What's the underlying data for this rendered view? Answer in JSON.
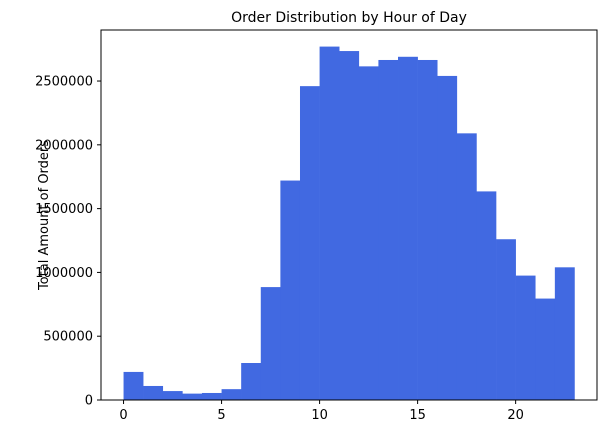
{
  "chart_data": {
    "type": "bar",
    "title": "Order Distribution by Hour of Day",
    "xlabel": "",
    "ylabel": "Total Amount of Orders",
    "bar_color": "#4169e1",
    "bins": 23,
    "xlim": [
      -1.15,
      24.15
    ],
    "ylim": [
      0,
      2900000
    ],
    "x_ticks": [
      0,
      5,
      10,
      15,
      20
    ],
    "y_ticks": [
      0,
      500000,
      1000000,
      1500000,
      2000000,
      2500000
    ],
    "x_tick_labels": [
      "0",
      "5",
      "10",
      "15",
      "20"
    ],
    "y_tick_labels": [
      "0",
      "500000",
      "1000000",
      "1500000",
      "2000000",
      "2500000"
    ],
    "bin_edges": [
      0,
      1,
      2,
      3,
      4,
      5,
      6,
      7,
      8,
      9,
      10,
      11,
      12,
      13,
      14,
      15,
      16,
      17,
      18,
      19,
      20,
      21,
      22,
      23
    ],
    "values": [
      220000,
      110000,
      70000,
      50000,
      55000,
      85000,
      290000,
      885000,
      1720000,
      2460000,
      2770000,
      2735000,
      2615000,
      2665000,
      2690000,
      2665000,
      2540000,
      2090000,
      1635000,
      1260000,
      975000,
      795000,
      1040000
    ],
    "grid": false,
    "legend": false
  }
}
